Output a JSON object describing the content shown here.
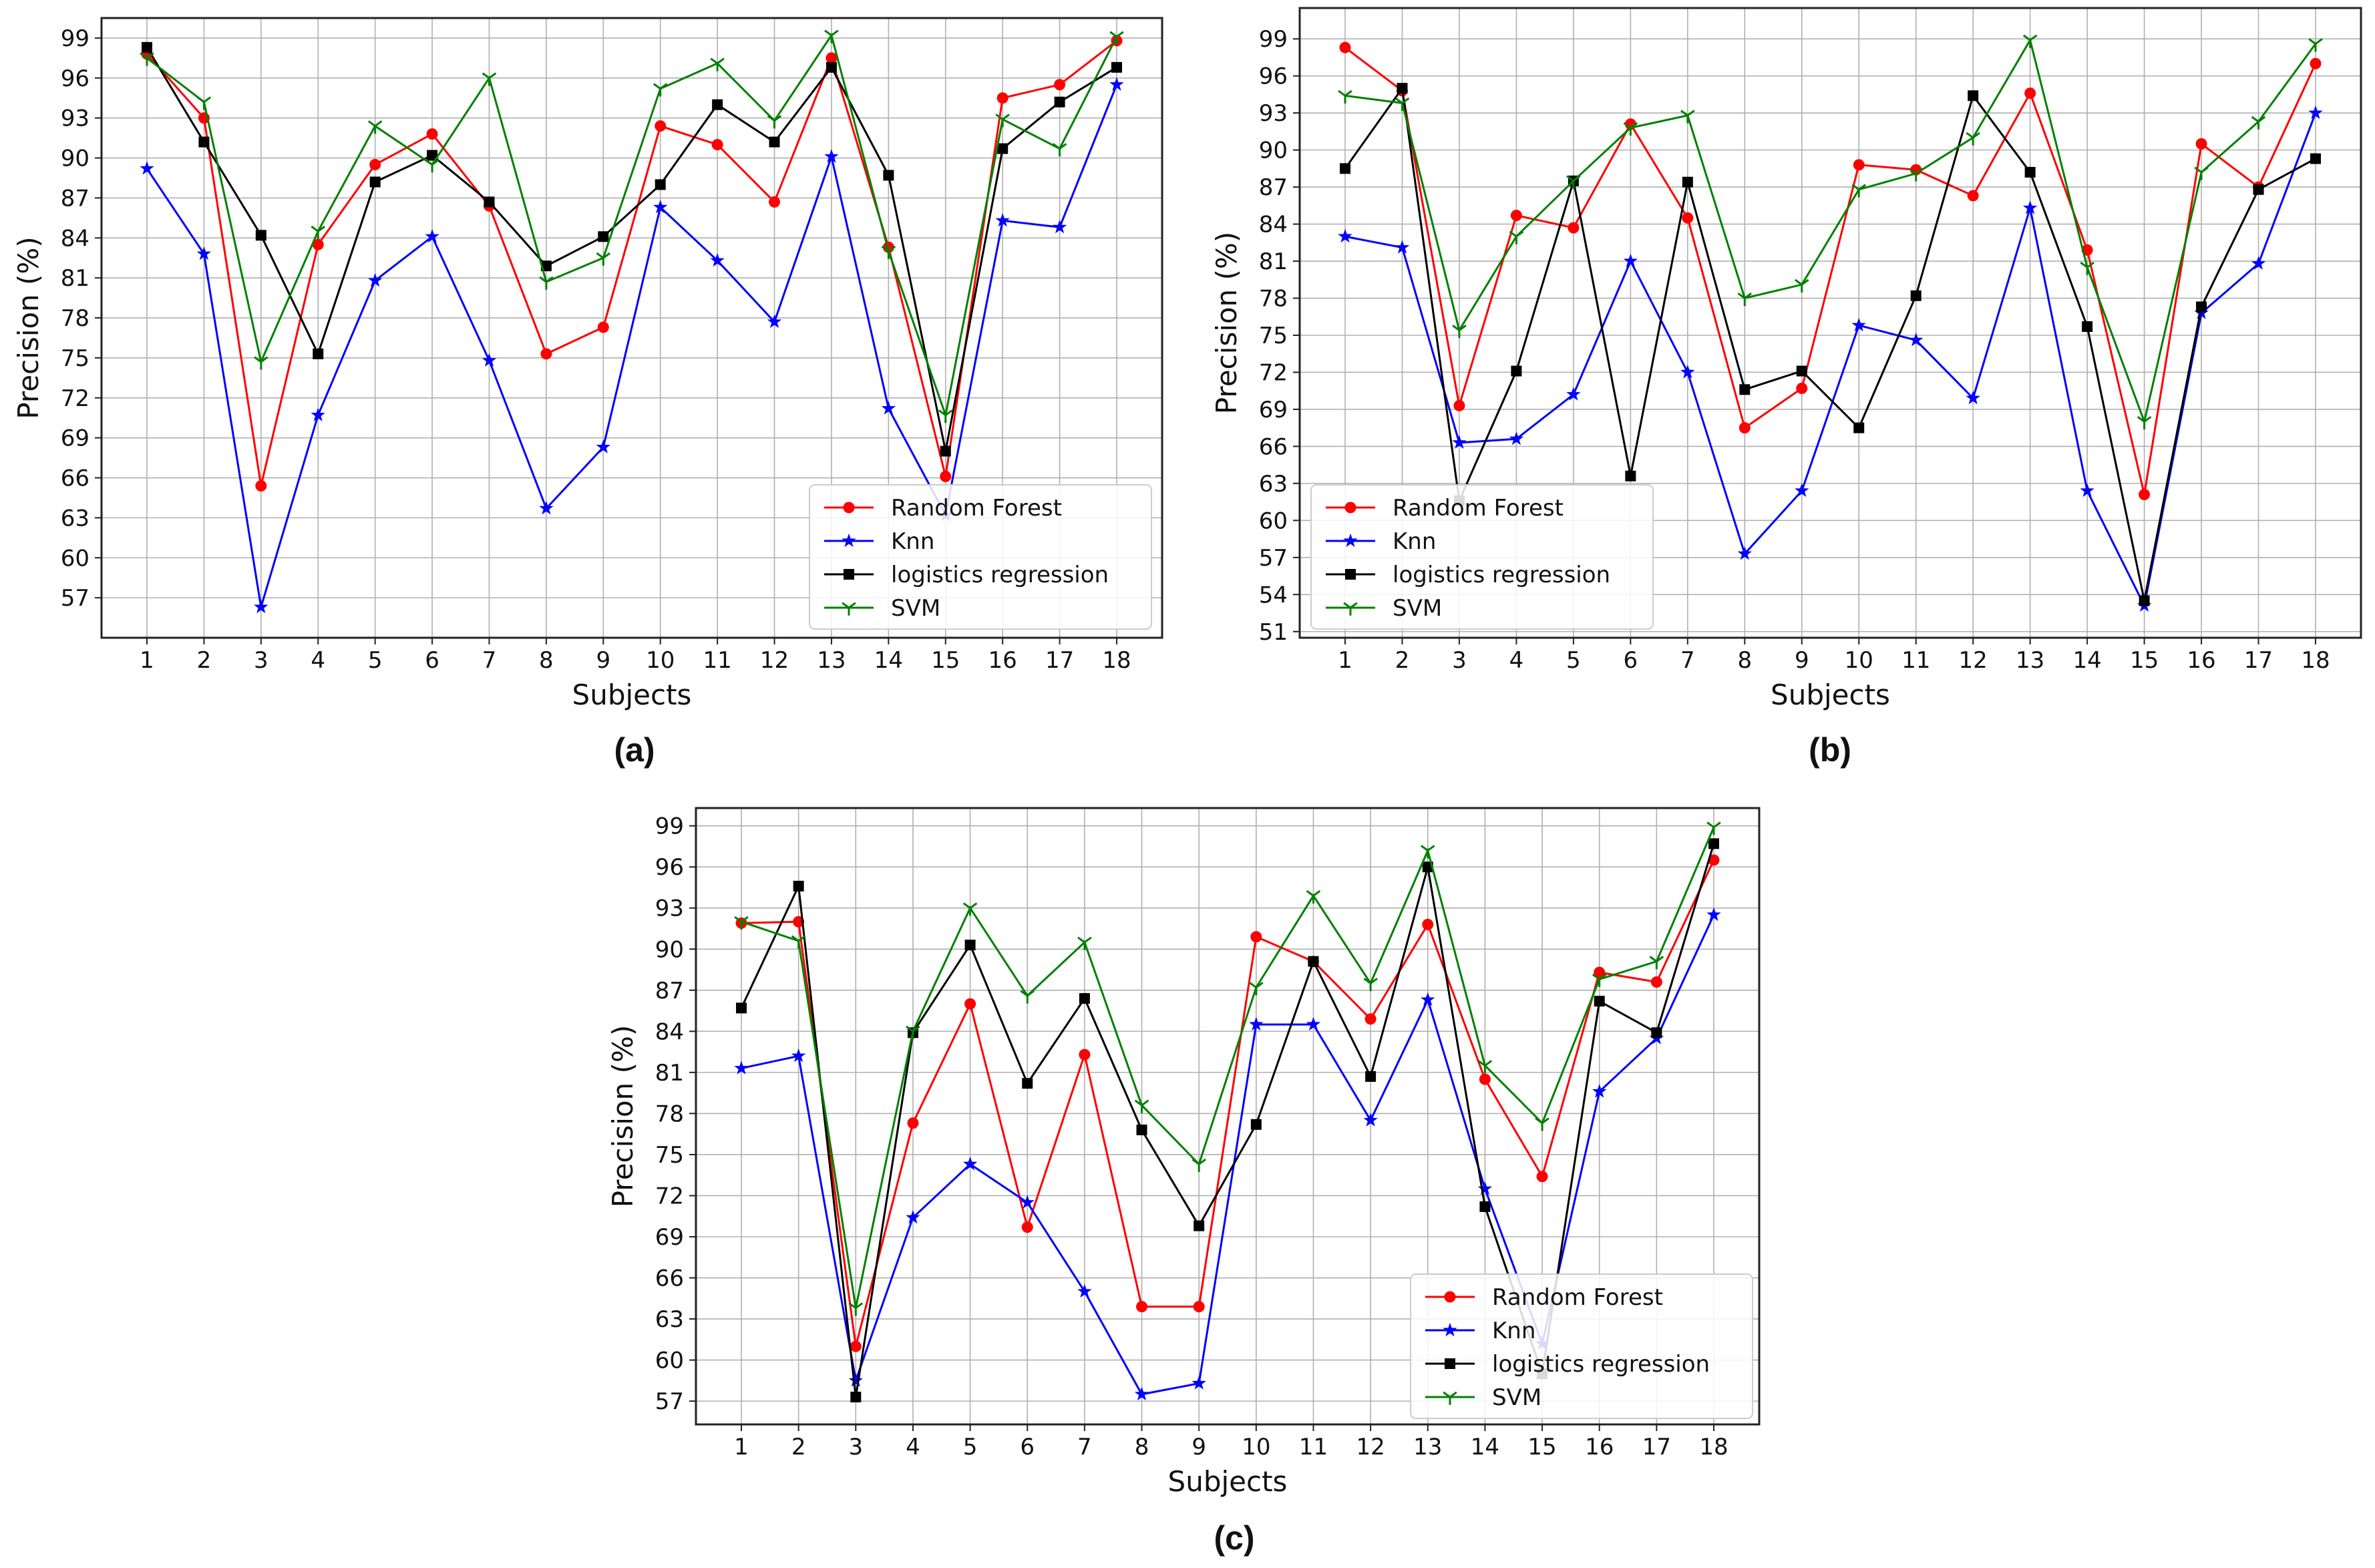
{
  "chart_data": [
    {
      "type": "line",
      "panel_label": "(a)",
      "xlabel": "Subjects",
      "ylabel": "Precision (%)",
      "categories": [
        "1",
        "2",
        "3",
        "4",
        "5",
        "6",
        "7",
        "8",
        "9",
        "10",
        "11",
        "12",
        "13",
        "14",
        "15",
        "16",
        "17",
        "18"
      ],
      "yticks": [
        "57",
        "60",
        "63",
        "66",
        "69",
        "72",
        "75",
        "78",
        "81",
        "84",
        "87",
        "90",
        "93",
        "96",
        "99"
      ],
      "ylim": [
        54,
        100.5
      ],
      "grid": true,
      "legend_position": "bottom-right",
      "series": [
        {
          "name": "Random Forest",
          "color": "#ff0000",
          "marker": "circle",
          "values": [
            97.8,
            93.0,
            65.4,
            83.5,
            89.5,
            91.8,
            86.4,
            75.3,
            77.3,
            92.4,
            91.0,
            86.7,
            97.5,
            83.3,
            66.1,
            94.5,
            95.5,
            98.8
          ]
        },
        {
          "name": "Knn",
          "color": "#0000ff",
          "marker": "star",
          "values": [
            89.2,
            82.8,
            56.3,
            70.7,
            80.8,
            84.1,
            74.8,
            63.7,
            68.3,
            86.3,
            82.3,
            77.7,
            90.1,
            71.2,
            63.2,
            85.3,
            84.8,
            95.5
          ]
        },
        {
          "name": "logistics regression",
          "color": "#000000",
          "marker": "square",
          "values": [
            98.3,
            91.2,
            84.2,
            75.3,
            88.2,
            90.2,
            86.7,
            81.9,
            84.1,
            88.0,
            94.0,
            91.2,
            96.8,
            88.7,
            68.0,
            90.7,
            94.2,
            96.8
          ]
        },
        {
          "name": "SVM",
          "color": "#008000",
          "marker": "tri",
          "values": [
            97.5,
            94.2,
            74.7,
            84.5,
            92.4,
            89.5,
            96.0,
            80.7,
            82.5,
            95.2,
            97.1,
            92.8,
            99.2,
            83.0,
            70.7,
            92.9,
            90.7,
            99.1
          ]
        }
      ]
    },
    {
      "type": "line",
      "panel_label": "(b)",
      "xlabel": "Subjects",
      "ylabel": "Precision (%)",
      "categories": [
        "1",
        "2",
        "3",
        "4",
        "5",
        "6",
        "7",
        "8",
        "9",
        "10",
        "11",
        "12",
        "13",
        "14",
        "15",
        "16",
        "17",
        "18"
      ],
      "yticks": [
        "51",
        "54",
        "57",
        "60",
        "63",
        "66",
        "69",
        "72",
        "75",
        "78",
        "81",
        "84",
        "87",
        "90",
        "93",
        "96",
        "99"
      ],
      "ylim": [
        50.5,
        101.5
      ],
      "grid": true,
      "legend_position": "bottom-left",
      "series": [
        {
          "name": "Random Forest",
          "color": "#ff0000",
          "marker": "circle",
          "values": [
            98.3,
            94.8,
            69.3,
            84.7,
            83.7,
            92.1,
            84.5,
            67.5,
            70.7,
            88.8,
            88.4,
            86.3,
            94.6,
            81.9,
            62.1,
            90.5,
            87.0,
            97.0
          ]
        },
        {
          "name": "Knn",
          "color": "#0000ff",
          "marker": "star",
          "values": [
            83.0,
            82.1,
            66.3,
            66.6,
            70.2,
            81.0,
            72.0,
            57.3,
            62.4,
            75.8,
            74.6,
            69.9,
            85.3,
            62.4,
            53.1,
            76.8,
            80.8,
            93.0
          ]
        },
        {
          "name": "logistics regression",
          "color": "#000000",
          "marker": "square",
          "values": [
            88.5,
            95.0,
            61.6,
            72.1,
            87.5,
            63.6,
            87.4,
            70.6,
            72.1,
            67.5,
            78.2,
            94.4,
            88.2,
            75.7,
            53.5,
            77.3,
            86.8,
            89.3
          ]
        },
        {
          "name": "SVM",
          "color": "#008000",
          "marker": "tri",
          "values": [
            94.4,
            93.8,
            75.4,
            83.0,
            87.5,
            91.8,
            92.8,
            78.0,
            79.1,
            86.8,
            88.1,
            91.0,
            98.9,
            80.5,
            68.0,
            88.2,
            92.3,
            98.6
          ]
        }
      ]
    },
    {
      "type": "line",
      "panel_label": "(c)",
      "xlabel": "Subjects",
      "ylabel": "Precision (%)",
      "categories": [
        "1",
        "2",
        "3",
        "4",
        "5",
        "6",
        "7",
        "8",
        "9",
        "10",
        "11",
        "12",
        "13",
        "14",
        "15",
        "16",
        "17",
        "18"
      ],
      "yticks": [
        "57",
        "60",
        "63",
        "66",
        "69",
        "72",
        "75",
        "78",
        "81",
        "84",
        "87",
        "90",
        "93",
        "96",
        "99"
      ],
      "ylim": [
        55.3,
        100.3
      ],
      "grid": true,
      "legend_position": "bottom-right",
      "series": [
        {
          "name": "Random Forest",
          "color": "#ff0000",
          "marker": "circle",
          "values": [
            91.9,
            92.0,
            61.0,
            77.3,
            86.0,
            69.7,
            82.3,
            63.9,
            63.9,
            90.9,
            89.1,
            84.9,
            91.8,
            80.5,
            73.4,
            88.3,
            87.6,
            96.5
          ]
        },
        {
          "name": "Knn",
          "color": "#0000ff",
          "marker": "star",
          "values": [
            81.3,
            82.2,
            58.5,
            70.4,
            74.3,
            71.5,
            65.0,
            57.5,
            58.3,
            84.5,
            84.5,
            77.5,
            86.3,
            72.5,
            61.2,
            79.6,
            83.5,
            92.5
          ]
        },
        {
          "name": "logistics regression",
          "color": "#000000",
          "marker": "square",
          "values": [
            85.7,
            94.6,
            57.3,
            83.9,
            90.3,
            80.2,
            86.4,
            76.8,
            69.8,
            77.2,
            89.1,
            80.7,
            96.0,
            71.2,
            59.0,
            86.2,
            83.9,
            97.7
          ]
        },
        {
          "name": "SVM",
          "color": "#008000",
          "marker": "tri",
          "values": [
            92.0,
            90.6,
            63.8,
            84.0,
            93.0,
            86.6,
            90.5,
            78.6,
            74.3,
            87.2,
            93.9,
            87.5,
            97.2,
            81.5,
            77.3,
            87.8,
            89.1,
            98.9
          ]
        }
      ]
    }
  ]
}
